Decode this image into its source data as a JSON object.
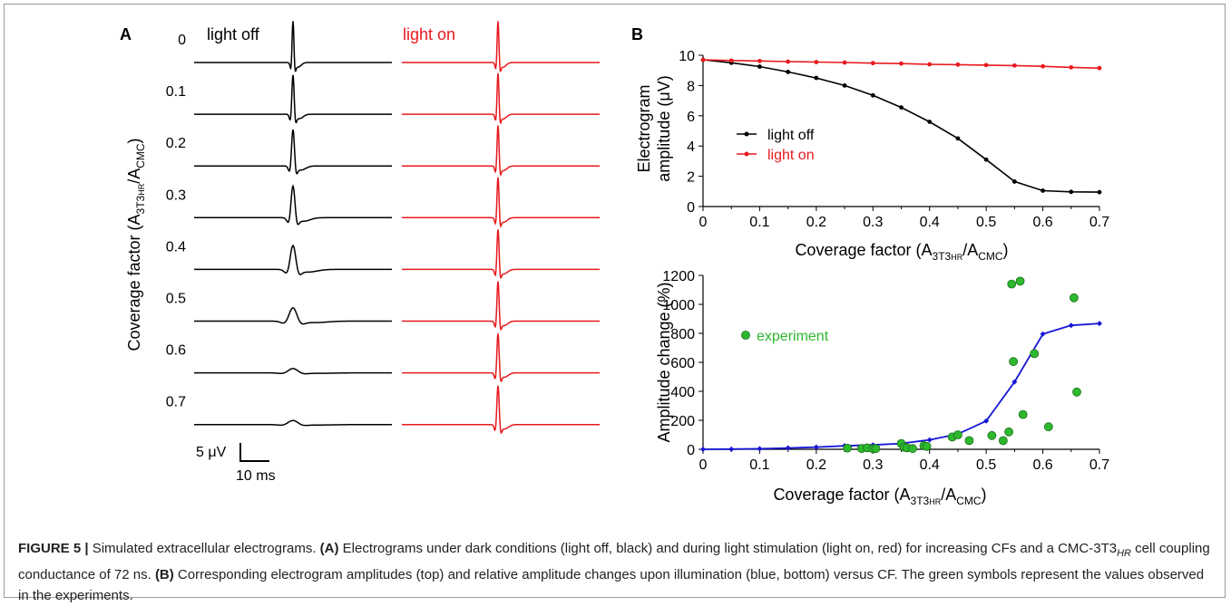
{
  "panel_a": {
    "label": "A",
    "col_off": "light off",
    "col_on": "light on",
    "ylabel_prefix": "Coverage factor (A",
    "ylabel_sub1": "3T3",
    "ylabel_sub1b": "HR",
    "ylabel_mid": "/A",
    "ylabel_sub2": "CMC",
    "ylabel_suffix": ")",
    "row_labels": [
      "0",
      "0.1",
      "0.2",
      "0.3",
      "0.4",
      "0.5",
      "0.6",
      "0.7"
    ],
    "off_amplitudes_uV": [
      9.7,
      9.2,
      8.5,
      7.4,
      5.6,
      3.1,
      1.0,
      0.95
    ],
    "on_amplitudes_uV": [
      9.7,
      9.6,
      9.5,
      9.45,
      9.35,
      9.3,
      9.2,
      9.1
    ],
    "scale_v": "5 μV",
    "scale_t": "10 ms"
  },
  "panel_b": {
    "label": "B"
  },
  "chart_data": [
    {
      "type": "line",
      "x": [
        0,
        0.05,
        0.1,
        0.15,
        0.2,
        0.25,
        0.3,
        0.35,
        0.4,
        0.45,
        0.5,
        0.55,
        0.6,
        0.65,
        0.7
      ],
      "series": [
        {
          "name": "light off",
          "color": "#000000",
          "values": [
            9.7,
            9.5,
            9.25,
            8.9,
            8.5,
            8.0,
            7.35,
            6.55,
            5.6,
            4.5,
            3.1,
            1.65,
            1.05,
            0.97,
            0.95
          ]
        },
        {
          "name": "light on",
          "color": "#e8191e",
          "values": [
            9.7,
            9.65,
            9.62,
            9.58,
            9.55,
            9.52,
            9.48,
            9.45,
            9.4,
            9.38,
            9.35,
            9.32,
            9.27,
            9.2,
            9.15
          ]
        }
      ],
      "xlabel_prefix": "Coverage factor (A",
      "xlabel_sub1": "3T3",
      "xlabel_sub1b": "HR",
      "xlabel_mid": "/A",
      "xlabel_sub2": "CMC",
      "xlabel_suffix": ")",
      "ylabel_line1": "Electrogram",
      "ylabel_line2": "amplitude (μV)",
      "xlim": [
        0,
        0.7
      ],
      "ylim": [
        0,
        10
      ],
      "xticks": [
        "0",
        "0.1",
        "0.2",
        "0.3",
        "0.4",
        "0.5",
        "0.6",
        "0.7"
      ],
      "yticks": [
        "0",
        "2",
        "4",
        "6",
        "8",
        "10"
      ],
      "legend_placement": "middle-left",
      "grid": false
    },
    {
      "type": "scatter",
      "x": [
        0,
        0.05,
        0.1,
        0.15,
        0.2,
        0.25,
        0.3,
        0.35,
        0.4,
        0.45,
        0.5,
        0.55,
        0.6,
        0.65,
        0.7
      ],
      "series": [
        {
          "name": "",
          "color": "#1515d6",
          "values": [
            0,
            1,
            4,
            9,
            15,
            24,
            30,
            40,
            65,
            105,
            195,
            465,
            795,
            855,
            868
          ]
        },
        {
          "name": "experiment",
          "color": "#2db82d",
          "points": [
            [
              0.255,
              8
            ],
            [
              0.28,
              5
            ],
            [
              0.29,
              10
            ],
            [
              0.3,
              4
            ],
            [
              0.305,
              5
            ],
            [
              0.35,
              40
            ],
            [
              0.355,
              15
            ],
            [
              0.36,
              10
            ],
            [
              0.37,
              5
            ],
            [
              0.39,
              25
            ],
            [
              0.395,
              20
            ],
            [
              0.44,
              85
            ],
            [
              0.45,
              100
            ],
            [
              0.47,
              60
            ],
            [
              0.51,
              95
            ],
            [
              0.53,
              60
            ],
            [
              0.54,
              120
            ],
            [
              0.545,
              1140
            ],
            [
              0.548,
              605
            ],
            [
              0.56,
              1160
            ],
            [
              0.565,
              240
            ],
            [
              0.585,
              660
            ],
            [
              0.61,
              155
            ],
            [
              0.655,
              1045
            ],
            [
              0.66,
              395
            ]
          ]
        }
      ],
      "xlabel_prefix": "Coverage factor (A",
      "xlabel_sub1": "3T3",
      "xlabel_sub1b": "HR",
      "xlabel_mid": "/A",
      "xlabel_sub2": "CMC",
      "xlabel_suffix": ")",
      "ylabel": "Amplitude change (%)",
      "xlim": [
        0,
        0.7
      ],
      "ylim": [
        0,
        1200
      ],
      "xticks": [
        "0",
        "0.1",
        "0.2",
        "0.3",
        "0.4",
        "0.5",
        "0.6",
        "0.7"
      ],
      "yticks": [
        "0",
        "200",
        "400",
        "600",
        "800",
        "1000",
        "1200"
      ],
      "legend_placement": "middle-left",
      "grid": false
    }
  ],
  "caption": {
    "label": "FIGURE 5 |",
    "t1": " Simulated extracellular electrograms. ",
    "a": "(A)",
    "t2": " Electrograms under dark conditions (light off, black) and during light stimulation (light on, red) for increasing CFs and a CMC-3T3",
    "sub": "HR",
    "t3": " cell coupling conductance of 72 ns. ",
    "b": "(B)",
    "t4": " Corresponding electrogram amplitudes (top) and relative amplitude changes upon illumination (blue, bottom) versus CF. The green symbols represent the values observed in the experiments."
  }
}
